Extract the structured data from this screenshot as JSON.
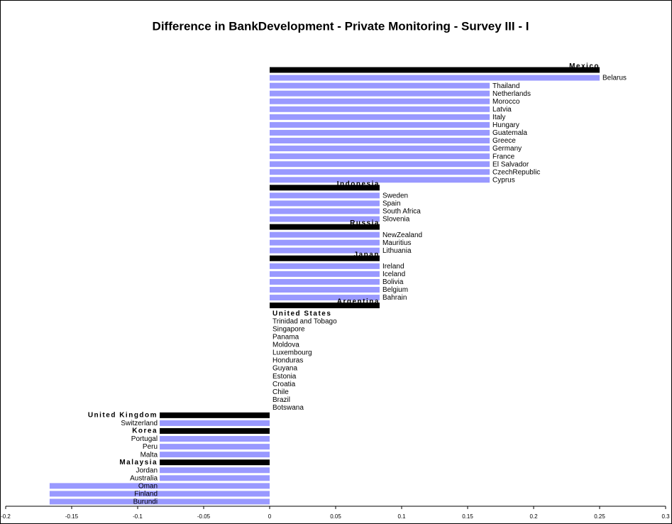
{
  "chart_data": {
    "type": "barh",
    "title": "Difference in BankDevelopment - Private Monitoring - Survey III - I",
    "categories": [
      "Mexico",
      "Belarus",
      "Thailand",
      "Netherlands",
      "Morocco",
      "Latvia",
      "Italy",
      "Hungary",
      "Guatemala",
      "Greece",
      "Germany",
      "France",
      "El Salvador",
      "CzechRepublic",
      "Cyprus",
      "Indonesia",
      "Sweden",
      "Spain",
      "South Africa",
      "Slovenia",
      "Russia",
      "NewZealand",
      "Mauritius",
      "Lithuania",
      "Japan",
      "Ireland",
      "Iceland",
      "Bolivia",
      "Belgium",
      "Bahrain",
      "Argentina",
      "United States",
      "Trinidad and Tobago",
      "Singapore",
      "Panama",
      "Moldova",
      "Luxembourg",
      "Honduras",
      "Guyana",
      "Estonia",
      "Croatia",
      "Chile",
      "Brazil",
      "Botswana",
      "United Kingdom",
      "Switzerland",
      "Korea",
      "Portugal",
      "Peru",
      "Malta",
      "Malaysia",
      "Jordan",
      "Australia",
      "Oman",
      "Finland",
      "Burundi"
    ],
    "values": [
      0.25,
      0.25,
      0.1667,
      0.1667,
      0.1667,
      0.1667,
      0.1667,
      0.1667,
      0.1667,
      0.1667,
      0.1667,
      0.1667,
      0.1667,
      0.1667,
      0.1667,
      0.0833,
      0.0833,
      0.0833,
      0.0833,
      0.0833,
      0.0833,
      0.0833,
      0.0833,
      0.0833,
      0.0833,
      0.0833,
      0.0833,
      0.0833,
      0.0833,
      0.0833,
      0.0833,
      0,
      0,
      0,
      0,
      0,
      0,
      0,
      0,
      0,
      0,
      0,
      0,
      0,
      -0.0833,
      -0.0833,
      -0.0833,
      -0.0833,
      -0.0833,
      -0.0833,
      -0.0833,
      -0.0833,
      -0.0833,
      -0.1667,
      -0.1667,
      -0.1667
    ],
    "color": "#9999ff",
    "highlight_color": "#000000",
    "highlighted": [
      "Mexico",
      "Indonesia",
      "Russia",
      "Japan",
      "Argentina",
      "United States",
      "United Kingdom",
      "Korea",
      "Malaysia"
    ],
    "xlim": [
      -0.2,
      0.3
    ],
    "xticks": [
      -0.2,
      -0.15,
      -0.1,
      -0.05,
      0,
      0.05,
      0.1,
      0.15,
      0.2,
      0.25,
      0.3
    ]
  }
}
